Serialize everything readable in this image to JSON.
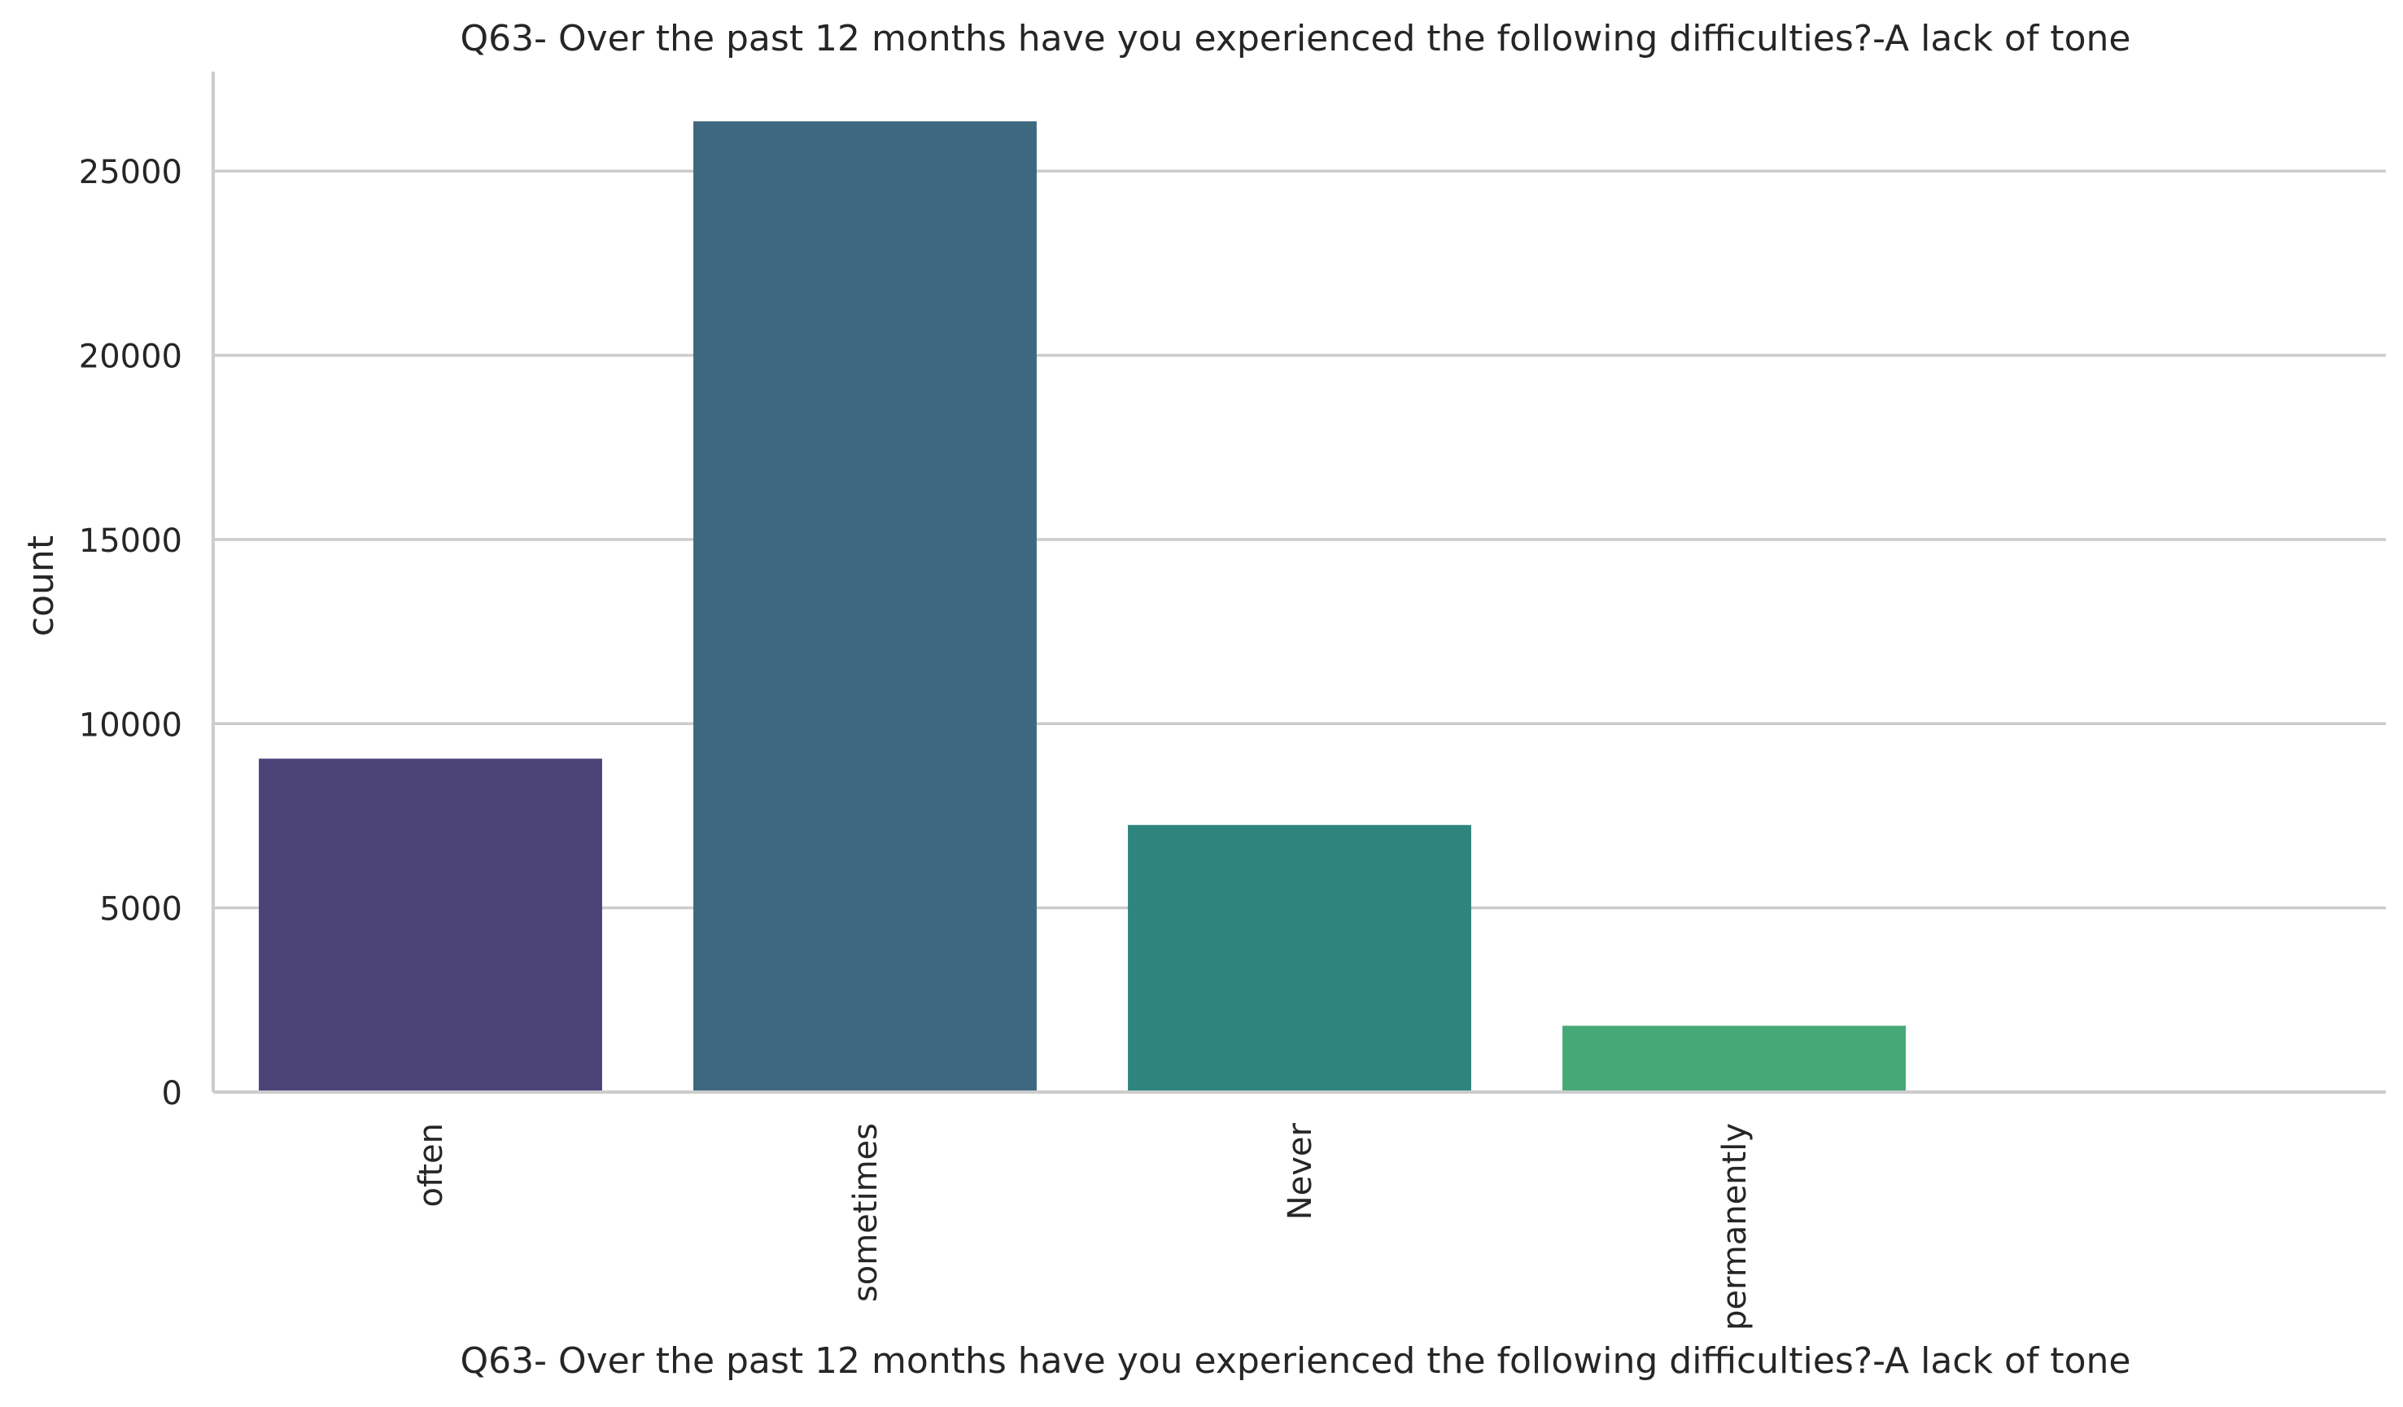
{
  "chart_data": {
    "type": "bar",
    "title": "Q63- Over the past 12 months have you experienced the following difficulties?-A lack of tone",
    "xlabel": "Q63- Over the past 12 months have you experienced the following difficulties?-A lack of tone",
    "ylabel": "count",
    "categories": [
      "often",
      "sometimes",
      "Never",
      "permanently"
    ],
    "values": [
      9050,
      26350,
      7250,
      1800
    ],
    "colors": [
      "#4b4278",
      "#3e6780",
      "#2e847e",
      "#45a877"
    ],
    "ylim": [
      0,
      27700
    ],
    "yticks": [
      0,
      5000,
      10000,
      15000,
      20000,
      25000
    ],
    "ytick_labels": [
      "0",
      "5000",
      "10000",
      "15000",
      "20000",
      "25000"
    ],
    "xlim": [
      -0.5,
      4.5
    ],
    "grid": "horizontal",
    "grid_color": "#cccccc",
    "axis_color": "#cccccc"
  }
}
